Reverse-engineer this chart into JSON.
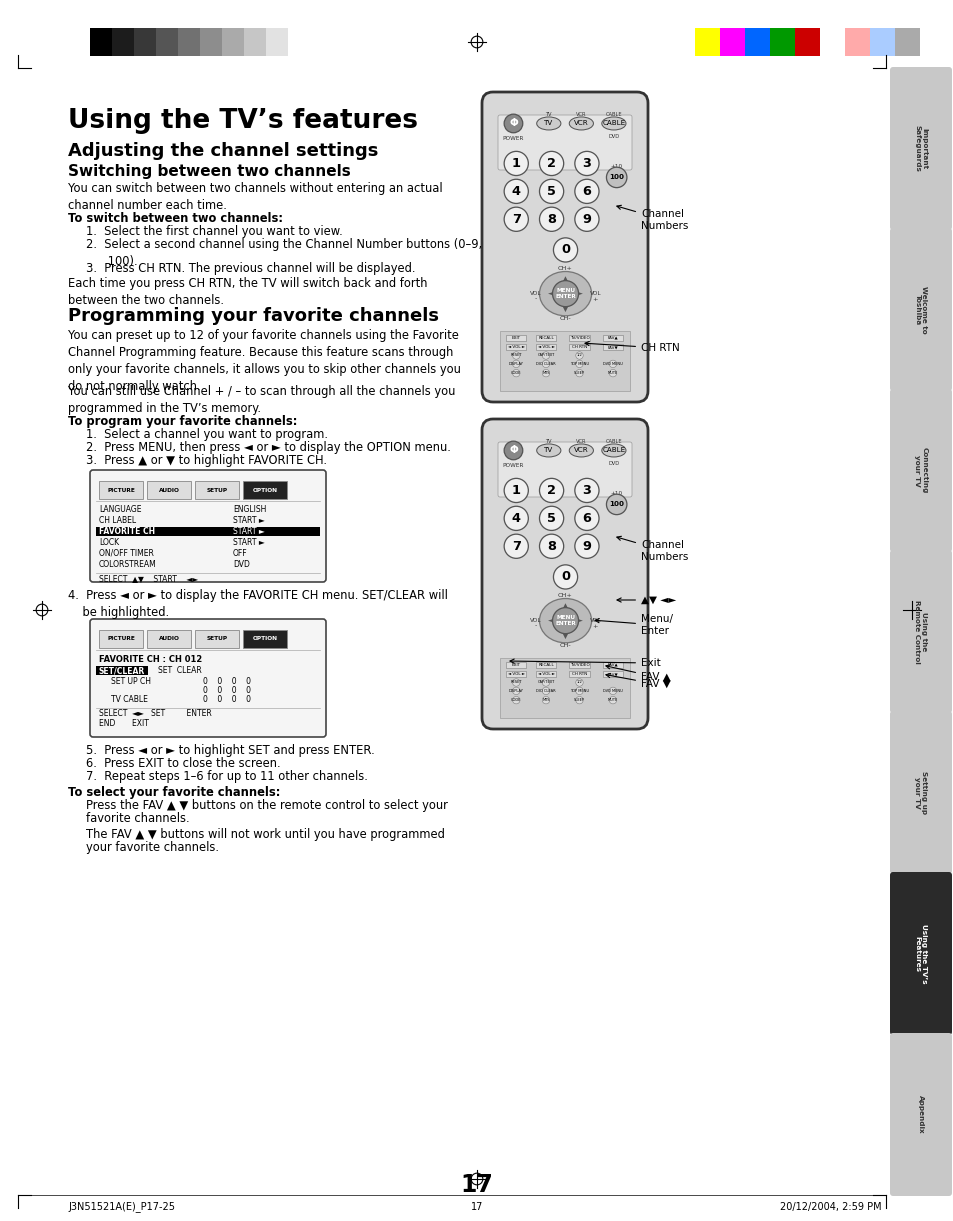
{
  "page_bg": "#ffffff",
  "page_number": "17",
  "footer_left": "J3N51521A(E)_P17-25",
  "footer_center": "17",
  "footer_right": "20/12/2004, 2:59 PM",
  "title_main": "Using the TV’s features",
  "title_sub1": "Adjusting the channel settings",
  "title_sub2": "Switching between two channels",
  "para1": "You can switch between two channels without entering an actual\nchannel number each time.",
  "bold1": "To switch between two channels:",
  "list1_1": "1.  Select the first channel you want to view.",
  "list1_2": "2.  Select a second channel using the Channel Number buttons (0–9,\n      100).",
  "list1_3": "3.  Press CH RTN. The previous channel will be displayed.",
  "para2": "Each time you press CH RTN, the TV will switch back and forth\nbetween the two channels.",
  "title_sub3": "Programming your favorite channels",
  "para3": "You can preset up to 12 of your favorite channels using the Favorite\nChannel Programming feature. Because this feature scans through\nonly your favorite channels, it allows you to skip other channels you\ndo not normally watch.",
  "para4": "You can still use Channel + / – to scan through all the channels you\nprogrammed in the TV’s memory.",
  "bold2": "To program your favorite channels:",
  "list2_1": "1.  Select a channel you want to program.",
  "list2_2": "2.  Press MENU, then press ◄ or ► to display the OPTION menu.",
  "list2_3": "3.  Press ▲ or ▼ to highlight FAVORITE CH.",
  "step4": "4.  Press ◄ or ► to display the FAVORITE CH menu. SET/CLEAR will\n    be highlighted.",
  "list3_1": "5.  Press ◄ or ► to highlight SET and press ENTER.",
  "list3_2": "6.  Press EXIT to close the screen.",
  "list3_3": "7.  Repeat steps 1–6 for up to 11 other channels.",
  "bold3": "To select your favorite channels:",
  "para5_1": "Press the FAV ▲ ▼ buttons on the remote control to select your",
  "para5_2": "favorite channels.",
  "para6_1": "The FAV ▲ ▼ buttons will not work until you have programmed",
  "para6_2": "your favorite channels.",
  "sidebar_labels": [
    "Important\nSafeguards",
    "Welcome to\nToshiba",
    "Connecting\nyour TV",
    "Using the\nRemote Control",
    "Setting up\nyour TV",
    "Using the TV’s\nFeatures",
    "Appendix"
  ],
  "sidebar_active_index": 5,
  "color_bar_left": [
    "#000000",
    "#1c1c1c",
    "#383838",
    "#555555",
    "#717171",
    "#8d8d8d",
    "#aaaaaa",
    "#c6c6c6",
    "#e2e2e2",
    "#ffffff"
  ],
  "color_bar_right": [
    "#ffff00",
    "#ff00ff",
    "#0066ff",
    "#009900",
    "#cc0000",
    "#ffffff",
    "#ffaaaa",
    "#aaccff",
    "#aaaaaa"
  ]
}
